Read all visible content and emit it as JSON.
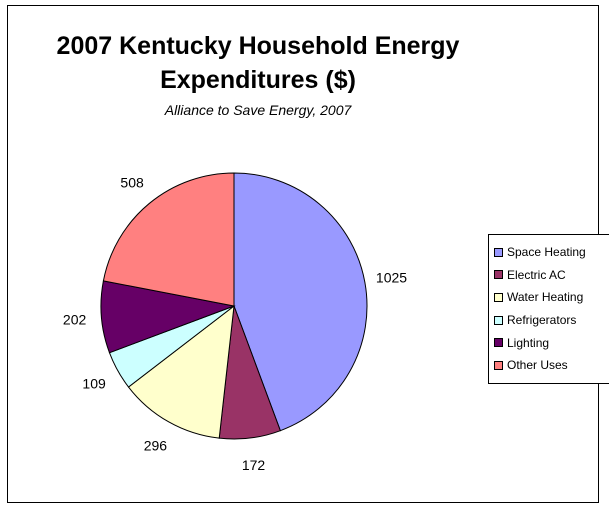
{
  "chart_data": {
    "type": "pie",
    "title_lines": [
      "2007 Kentucky Household Energy",
      "Expenditures ($)"
    ],
    "subtitle": "Alliance to Save Energy, 2007",
    "legend_position": "right",
    "slices": [
      {
        "label": "Space Heating",
        "value": 1025,
        "value_label": "1025",
        "color": "#9999FF"
      },
      {
        "label": "Electric AC",
        "value": 172,
        "value_label": "172",
        "color": "#993366"
      },
      {
        "label": "Water Heating",
        "value": 296,
        "value_label": "296",
        "color": "#FFFFCC"
      },
      {
        "label": "Refrigerators",
        "value": 109,
        "value_label": "109",
        "color": "#CCFFFF"
      },
      {
        "label": "Lighting",
        "value": 202,
        "value_label": "202",
        "color": "#660066"
      },
      {
        "label": "Other Uses",
        "value": 508,
        "value_label": "508",
        "color": "#FF8080"
      }
    ]
  }
}
